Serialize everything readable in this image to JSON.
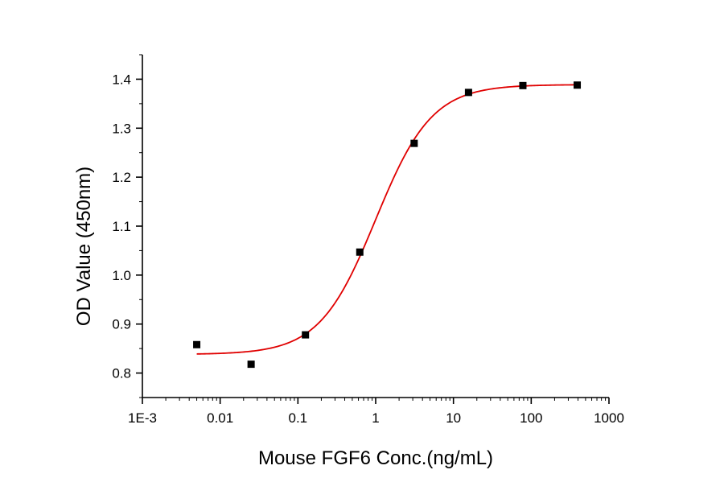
{
  "chart_data": {
    "type": "scatter",
    "xlabel": "Mouse FGF6 Conc.(ng/mL)",
    "ylabel": "OD Value (450nm)",
    "xscale": "log",
    "xlim": [
      0.001,
      1000
    ],
    "ylim": [
      0.75,
      1.45
    ],
    "x_ticks": [
      "1E-3",
      "0.01",
      "0.1",
      "1",
      "10",
      "100",
      "1000"
    ],
    "y_ticks": [
      "0.8",
      "0.9",
      "1.0",
      "1.1",
      "1.2",
      "1.3",
      "1.4"
    ],
    "grid": false,
    "legend": "none",
    "series": [
      {
        "kind": "points",
        "marker": "square",
        "color": "#000000",
        "x": [
          0.005,
          0.025,
          0.125,
          0.625,
          3.125,
          15.625,
          78.125,
          390.625
        ],
        "y": [
          0.858,
          0.818,
          0.878,
          1.047,
          1.269,
          1.373,
          1.387,
          1.388
        ]
      },
      {
        "kind": "fit",
        "color": "#e00000",
        "model": "4PL",
        "params": {
          "bottom": 0.838,
          "top": 1.389,
          "ec50": 1.0,
          "hill": 1.2
        },
        "x_range": [
          0.005,
          390.625
        ]
      }
    ]
  }
}
